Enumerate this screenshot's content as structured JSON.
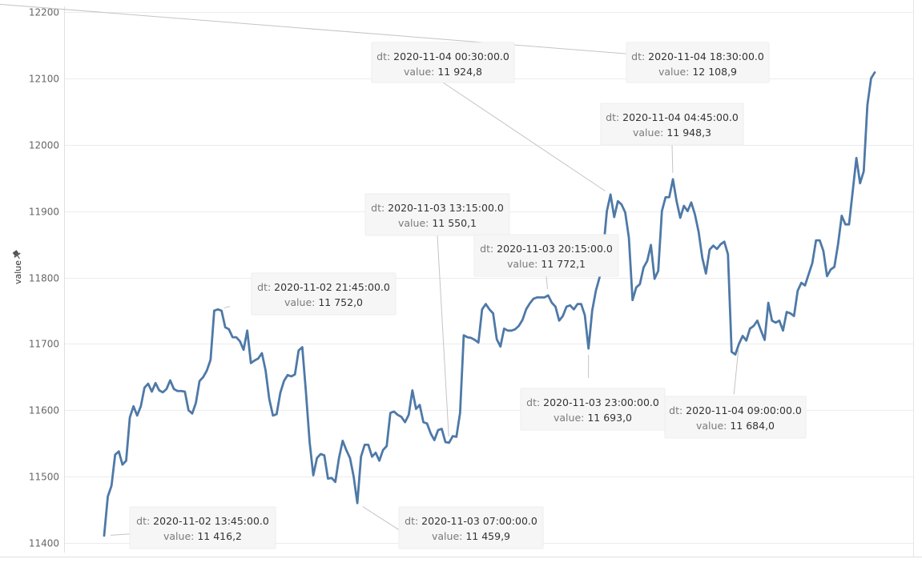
{
  "chart_data": {
    "type": "line",
    "ylabel": "value",
    "ylim": [
      11395,
      12220
    ],
    "yticks": [
      11400,
      11500,
      11600,
      11700,
      11800,
      11900,
      12000,
      12100,
      12200
    ],
    "x_label": "dt",
    "grid": true,
    "series": [
      {
        "color": "#4e79a7",
        "values": [
          11411,
          11470,
          11486,
          11533,
          11538,
          11518,
          11524,
          11589,
          11606,
          11592,
          11606,
          11634,
          11640,
          11628,
          11641,
          11630,
          11627,
          11632,
          11645,
          11632,
          11629,
          11629,
          11628,
          11600,
          11595,
          11611,
          11644,
          11650,
          11660,
          11676,
          11750,
          11752,
          11750,
          11725,
          11722,
          11710,
          11710,
          11704,
          11691,
          11720,
          11671,
          11675,
          11678,
          11686,
          11660,
          11617,
          11592,
          11594,
          11626,
          11644,
          11653,
          11651,
          11654,
          11690,
          11695,
          11627,
          11552,
          11502,
          11528,
          11534,
          11532,
          11497,
          11498,
          11492,
          11528,
          11554,
          11540,
          11528,
          11500,
          11460,
          11530,
          11548,
          11548,
          11530,
          11536,
          11524,
          11540,
          11546,
          11596,
          11598,
          11593,
          11590,
          11582,
          11593,
          11630,
          11602,
          11608,
          11582,
          11580,
          11565,
          11555,
          11570,
          11572,
          11552,
          11551,
          11561,
          11560,
          11596,
          11713,
          11710,
          11709,
          11706,
          11702,
          11752,
          11760,
          11752,
          11746,
          11707,
          11696,
          11723,
          11720,
          11720,
          11722,
          11727,
          11736,
          11752,
          11761,
          11768,
          11770,
          11770,
          11770,
          11773,
          11762,
          11756,
          11735,
          11742,
          11756,
          11758,
          11752,
          11760,
          11760,
          11743,
          11693,
          11750,
          11780,
          11800,
          11840,
          11900,
          11925,
          11891,
          11915,
          11910,
          11898,
          11860,
          11766,
          11785,
          11790,
          11815,
          11825,
          11849,
          11798,
          11810,
          11900,
          11921,
          11921,
          11948,
          11915,
          11890,
          11908,
          11900,
          11913,
          11895,
          11869,
          11830,
          11806,
          11842,
          11848,
          11843,
          11850,
          11854,
          11835,
          11688,
          11684,
          11700,
          11712,
          11705,
          11723,
          11727,
          11735,
          11720,
          11706,
          11762,
          11735,
          11732,
          11735,
          11720,
          11748,
          11746,
          11742,
          11780,
          11792,
          11788,
          11805,
          11822,
          11856,
          11856,
          11840,
          11802,
          11812,
          11816,
          11850,
          11893,
          11880,
          11880,
          11930,
          11980,
          11942,
          11960,
          12060,
          12100,
          12109
        ]
      }
    ],
    "annotations": [
      {
        "dt": "2020-11-02 13:45:00.0",
        "value_label": "11 416,2",
        "index": 0
      },
      {
        "dt": "2020-11-02 21:45:00.0",
        "value_label": "11 752,0",
        "index": 31
      },
      {
        "dt": "2020-11-03 07:00:00.0",
        "value_label": "11 459,9",
        "index": 69
      },
      {
        "dt": "2020-11-03 13:15:00.0",
        "value_label": "11 550,1",
        "index": 94
      },
      {
        "dt": "2020-11-03 20:15:00.0",
        "value_label": "11 772,1",
        "index": 121
      },
      {
        "dt": "2020-11-03 23:00:00.0",
        "value_label": "11 693,0",
        "index": 132
      },
      {
        "dt": "2020-11-04 00:30:00.0",
        "value_label": "11 924,8",
        "index": 138
      },
      {
        "dt": "2020-11-04 04:45:00.0",
        "value_label": "11 948,3",
        "index": 155
      },
      {
        "dt": "2020-11-04 09:00:00.0",
        "value_label": "11 684,0",
        "index": 173
      },
      {
        "dt": "2020-11-04 18:30:00.0",
        "value_label": "12 108,9",
        "index": 211
      }
    ],
    "annotation_value_key": "value"
  },
  "ui": {
    "pin_icon": "pin-icon"
  }
}
